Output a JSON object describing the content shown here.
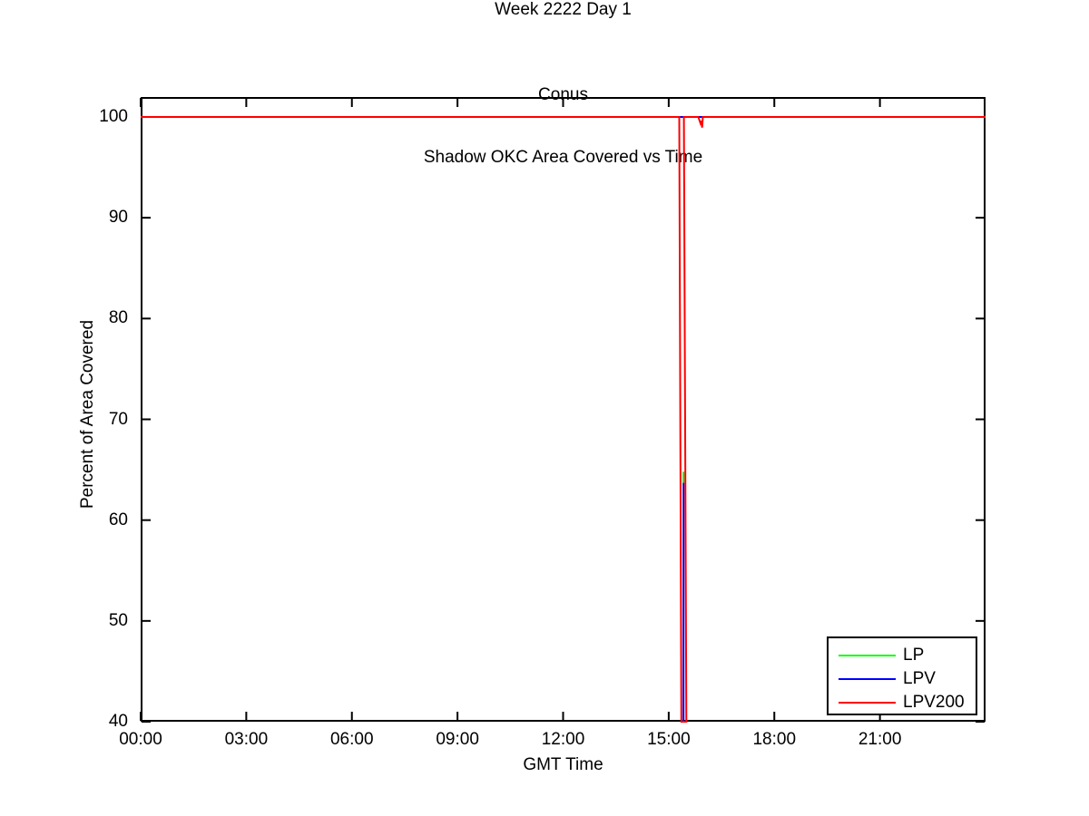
{
  "chart_data": {
    "type": "line",
    "title": "Week 2222 Day 1",
    "subtitle_lines": [
      "Conus",
      "Shadow OKC Area Covered vs Time"
    ],
    "xlabel": "GMT Time",
    "ylabel": "Percent of Area Covered",
    "x_axis": {
      "unit": "hours GMT",
      "range": [
        0,
        24
      ],
      "tick_hours": [
        0,
        3,
        6,
        9,
        12,
        15,
        18,
        21
      ],
      "tick_labels": [
        "00:00",
        "03:00",
        "06:00",
        "09:00",
        "12:00",
        "15:00",
        "18:00",
        "21:00"
      ]
    },
    "y_axis": {
      "range": [
        40,
        102
      ],
      "ticks": [
        100,
        90,
        80,
        70,
        60,
        50,
        40
      ]
    },
    "grid": false,
    "legend": {
      "position": "bottom-right",
      "border": true,
      "entries": [
        "LP",
        "LPV",
        "LPV200"
      ]
    },
    "axis_color": "#000000",
    "background": "#ffffff",
    "series": [
      {
        "name": "LP",
        "color": "#00FF00",
        "summary": "100% coverage all day except a brief dip to about 64% near 15:25 GMT",
        "paths": [
          [
            [
              0,
              100
            ],
            [
              24,
              100
            ]
          ],
          [
            [
              15.42,
              64.8
            ],
            [
              15.42,
              63.7
            ]
          ]
        ]
      },
      {
        "name": "LPV",
        "color": "#0000FF",
        "summary": "100% coverage all day except a brief drop below 40% near 15:25 GMT",
        "paths": [
          [
            [
              0,
              100
            ],
            [
              24,
              100
            ]
          ],
          [
            [
              15.42,
              63.7
            ],
            [
              15.42,
              40
            ]
          ]
        ]
      },
      {
        "name": "LPV200",
        "color": "#FF0000",
        "summary": "100% coverage all day except a drop below 40% at about 15:18-15:30 GMT and a small dip to ~99% at about 15:50-15:58 GMT",
        "paths": [
          [
            [
              0,
              100
            ],
            [
              15.3,
              100
            ],
            [
              15.36,
              40
            ],
            [
              15.5,
              40
            ],
            [
              15.43,
              100
            ],
            [
              15.84,
              100
            ],
            [
              15.9,
              99.4
            ],
            [
              15.92,
              99.62
            ],
            [
              15.95,
              98.95
            ],
            [
              15.97,
              100
            ],
            [
              24,
              100
            ]
          ]
        ]
      }
    ]
  }
}
